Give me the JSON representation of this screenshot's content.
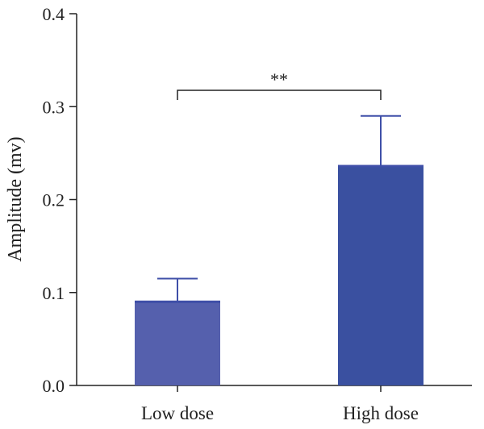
{
  "chart_data": {
    "type": "bar",
    "title": "",
    "xlabel": "",
    "ylabel": "Amplitude (mv)",
    "ylim": [
      0.0,
      0.4
    ],
    "yticks": [
      "0.0",
      "0.1",
      "0.2",
      "0.3",
      "0.4"
    ],
    "categories": [
      "Low dose",
      "High dose"
    ],
    "values": [
      0.09,
      0.236
    ],
    "errors": [
      0.025,
      0.054
    ],
    "colors": [
      "#5560ad",
      "#3a50a0"
    ],
    "error_color": "#3f4fa8",
    "grid": false,
    "legend": "none",
    "annotation": {
      "text": "**",
      "between": [
        "Low dose",
        "High dose"
      ]
    }
  }
}
